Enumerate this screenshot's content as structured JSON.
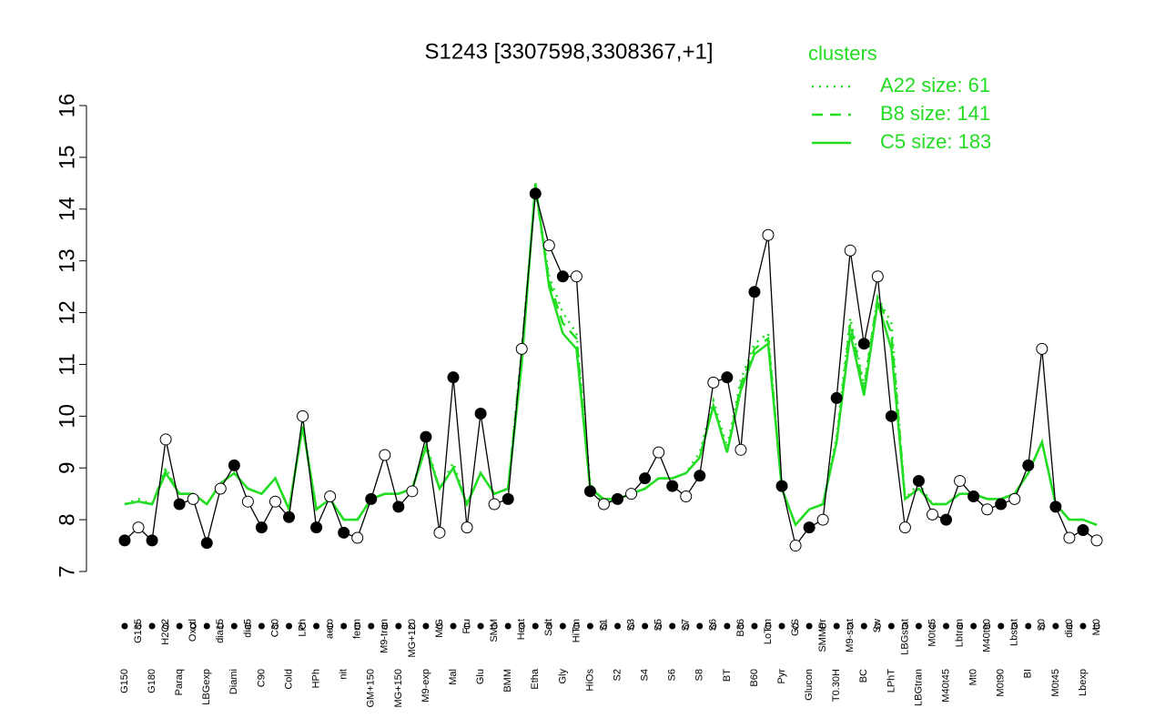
{
  "chart_data": {
    "type": "line",
    "title": "S1243 [3307598,3308367,+1]",
    "legend_title": "clusters",
    "legend_position": "top-right",
    "ylim": [
      7,
      16
    ],
    "yticks": [
      7,
      8,
      9,
      10,
      11,
      12,
      13,
      14,
      15,
      16
    ],
    "categories": [
      "G150",
      "G135",
      "G180",
      "H2O2",
      "Paraq",
      "Oxctl",
      "LBGexp",
      "dia15",
      "Diami",
      "dia5",
      "C90",
      "C30",
      "Cold",
      "LPh",
      "HPh",
      "aero",
      "nit",
      "ferm",
      "GM+150",
      "M9-tran",
      "MG+150",
      "MG+120",
      "M9-exp",
      "M/G",
      "Mal",
      "Fru",
      "Glu",
      "SMM",
      "BMM",
      "Heat",
      "Etha",
      "Salt",
      "Gly",
      "HiTm",
      "HiOs",
      "S1",
      "S2",
      "S3",
      "S4",
      "S5",
      "S6",
      "S7",
      "S8",
      "S6",
      "BT",
      "B36",
      "B60",
      "LoTm",
      "Pyr",
      "G/S",
      "Glucon",
      "SMMPr",
      "T0.30H",
      "M9-stat",
      "BC",
      "Sw",
      "LPhT",
      "LBGstat",
      "LBGtran",
      "M0t45",
      "M40t45",
      "Lbtran",
      "Mt0",
      "M40t90",
      "M0t90",
      "Lbstat",
      "BI",
      "S0",
      "M0t45",
      "dia0",
      "Lbexp",
      "Mt0"
    ],
    "series": [
      {
        "name": "S1243",
        "color": "#000000",
        "style": "points",
        "values": [
          7.6,
          7.85,
          7.6,
          9.55,
          8.3,
          8.4,
          7.55,
          8.6,
          9.05,
          8.35,
          7.85,
          8.35,
          8.05,
          10.0,
          7.85,
          8.45,
          7.75,
          7.65,
          8.4,
          9.25,
          8.25,
          8.55,
          9.6,
          7.75,
          10.75,
          7.85,
          10.05,
          8.3,
          8.4,
          11.3,
          14.3,
          13.3,
          12.7,
          12.7,
          8.55,
          8.3,
          8.4,
          8.5,
          8.8,
          9.3,
          8.65,
          8.45,
          8.85,
          10.65,
          10.75,
          9.35,
          12.4,
          13.5,
          8.65,
          7.5,
          7.85,
          8.0,
          10.35,
          13.2,
          11.4,
          12.7,
          10.0,
          7.85,
          8.75,
          8.1,
          8.0,
          8.75,
          8.45,
          8.2,
          8.3,
          8.4,
          9.05,
          11.3,
          8.25,
          7.65,
          7.8,
          7.6
        ]
      },
      {
        "name": "A22 size: 61",
        "color": "#22dd22",
        "style": "dotted",
        "values": [
          8.3,
          8.4,
          8.3,
          9.0,
          8.5,
          8.5,
          8.3,
          8.7,
          8.9,
          8.6,
          8.5,
          8.8,
          8.2,
          9.9,
          8.2,
          8.4,
          8.0,
          8.0,
          8.4,
          8.5,
          8.5,
          8.6,
          9.5,
          8.6,
          9.1,
          8.3,
          8.9,
          8.5,
          8.6,
          11.3,
          14.4,
          12.7,
          12.0,
          11.6,
          8.7,
          8.3,
          8.4,
          8.5,
          8.6,
          8.8,
          8.8,
          8.9,
          9.3,
          10.3,
          9.4,
          10.7,
          11.4,
          11.6,
          8.6,
          7.9,
          8.2,
          8.3,
          9.6,
          11.9,
          10.6,
          12.3,
          11.8,
          8.4,
          8.7,
          8.3,
          8.3,
          8.5,
          8.5,
          8.4,
          8.4,
          8.5,
          8.9,
          9.5,
          8.3,
          8.0,
          8.0,
          7.9
        ]
      },
      {
        "name": "B8 size: 141",
        "color": "#22dd22",
        "style": "dashed",
        "values": [
          8.3,
          8.35,
          8.3,
          8.95,
          8.5,
          8.5,
          8.3,
          8.7,
          8.9,
          8.6,
          8.5,
          8.8,
          8.2,
          9.8,
          8.2,
          8.4,
          8.0,
          8.0,
          8.4,
          8.5,
          8.5,
          8.6,
          9.4,
          8.6,
          9.0,
          8.3,
          8.9,
          8.5,
          8.6,
          11.2,
          14.4,
          12.6,
          11.8,
          11.5,
          8.6,
          8.4,
          8.4,
          8.5,
          8.6,
          8.8,
          8.8,
          8.9,
          9.2,
          10.2,
          9.3,
          10.6,
          11.3,
          11.5,
          8.6,
          7.9,
          8.2,
          8.3,
          9.5,
          11.8,
          10.5,
          12.3,
          11.6,
          8.4,
          8.6,
          8.3,
          8.3,
          8.5,
          8.5,
          8.4,
          8.4,
          8.5,
          8.9,
          9.5,
          8.3,
          8.0,
          8.0,
          7.9
        ]
      },
      {
        "name": "C5 size: 183",
        "color": "#22dd22",
        "style": "solid",
        "values": [
          8.3,
          8.35,
          8.3,
          8.9,
          8.5,
          8.5,
          8.3,
          8.7,
          8.9,
          8.6,
          8.5,
          8.8,
          8.2,
          9.8,
          8.2,
          8.4,
          8.0,
          8.0,
          8.4,
          8.5,
          8.5,
          8.6,
          9.4,
          8.6,
          9.0,
          8.3,
          8.9,
          8.5,
          8.6,
          11.0,
          14.5,
          12.5,
          11.6,
          11.3,
          8.6,
          8.4,
          8.4,
          8.5,
          8.6,
          8.8,
          8.8,
          8.9,
          9.2,
          10.2,
          9.3,
          10.5,
          11.2,
          11.4,
          8.6,
          7.9,
          8.2,
          8.3,
          9.5,
          11.6,
          10.4,
          12.2,
          11.3,
          8.4,
          8.6,
          8.3,
          8.3,
          8.5,
          8.5,
          8.4,
          8.4,
          8.5,
          8.9,
          9.5,
          8.3,
          8.0,
          8.0,
          7.9
        ]
      }
    ]
  }
}
